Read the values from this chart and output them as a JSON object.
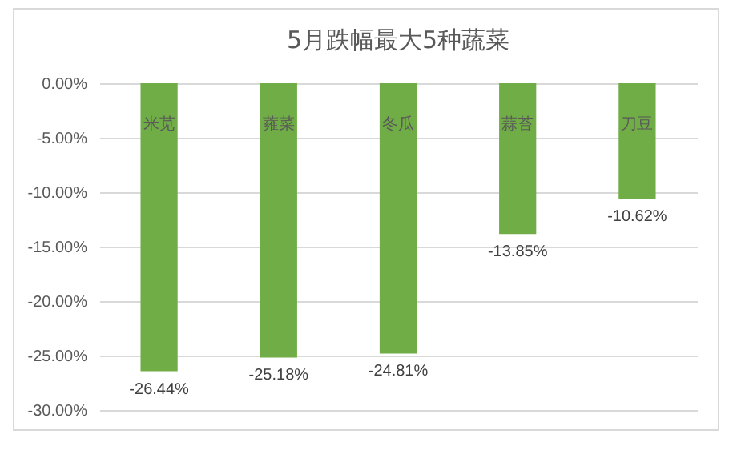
{
  "chart_data": {
    "type": "bar",
    "title": "5月跌幅最大5种蔬菜",
    "categories": [
      "米苋",
      "蕹菜",
      "冬瓜",
      "蒜苔",
      "刀豆"
    ],
    "values": [
      -26.44,
      -25.18,
      -24.81,
      -13.85,
      -10.62
    ],
    "value_labels": [
      "-26.44%",
      "-25.18%",
      "-24.81%",
      "-13.85%",
      "-10.62%"
    ],
    "color": "#70ad47",
    "ylim": [
      -30,
      0
    ],
    "yticks": [
      {
        "value": 0,
        "label": "0.00%"
      },
      {
        "value": -5,
        "label": "-5.00%"
      },
      {
        "value": -10,
        "label": "-10.00%"
      },
      {
        "value": -15,
        "label": "-15.00%"
      },
      {
        "value": -20,
        "label": "-20.00%"
      },
      {
        "value": -25,
        "label": "-25.00%"
      },
      {
        "value": -30,
        "label": "-30.00%"
      }
    ],
    "grid": "y"
  }
}
